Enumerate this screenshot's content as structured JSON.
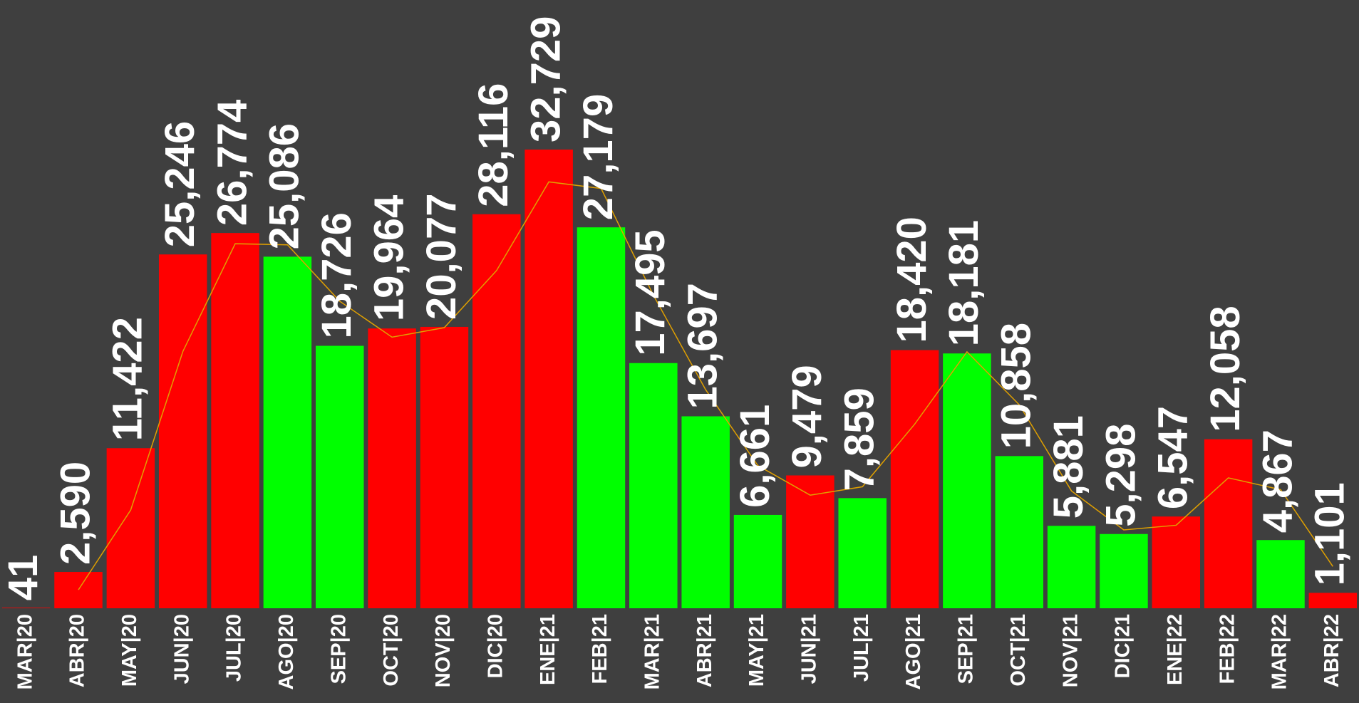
{
  "chart_data": {
    "type": "bar",
    "categories": [
      "MAR|20",
      "ABR|20",
      "MAY|20",
      "JUN|20",
      "JUL|20",
      "AGO|20",
      "SEP|20",
      "OCT|20",
      "NOV|20",
      "DIC|20",
      "ENE|21",
      "FEB|21",
      "MAR|21",
      "ABR|21",
      "MAY|21",
      "JUN|21",
      "JUL|21",
      "AGO|21",
      "SEP|21",
      "OCT|21",
      "NOV|21",
      "DIC|21",
      "ENE|22",
      "FEB|22",
      "MAR|22",
      "ABR|22"
    ],
    "ylim": [
      0,
      43400
    ],
    "series": [
      {
        "type": "bar",
        "values": [
          41,
          2590,
          11422,
          25246,
          26774,
          25086,
          18726,
          19964,
          20077,
          28116,
          32729,
          27179,
          17495,
          13697,
          6661,
          9479,
          7859,
          18420,
          18181,
          10858,
          5881,
          5298,
          6547,
          12058,
          4867,
          1101
        ],
        "value_labels": [
          "41",
          "2,590",
          "11,422",
          "25,246",
          "26,774",
          "25,086",
          "18,726",
          "19,964",
          "20,077",
          "28,116",
          "32,729",
          "27,179",
          "17,495",
          "13,697",
          "6,661",
          "9,479",
          "7,859",
          "18,420",
          "18,181",
          "10,858",
          "5,881",
          "5,298",
          "6,547",
          "12,058",
          "4,867",
          "1,101"
        ],
        "colors": [
          "#ff0000",
          "#ff0000",
          "#ff0000",
          "#ff0000",
          "#ff0000",
          "#00ff00",
          "#00ff00",
          "#ff0000",
          "#ff0000",
          "#ff0000",
          "#ff0000",
          "#00ff00",
          "#00ff00",
          "#00ff00",
          "#00ff00",
          "#ff0000",
          "#00ff00",
          "#ff0000",
          "#00ff00",
          "#00ff00",
          "#00ff00",
          "#00ff00",
          "#ff0000",
          "#ff0000",
          "#00ff00",
          "#ff0000"
        ]
      },
      {
        "type": "line",
        "color": "#e0a000",
        "values": [
          null,
          1316,
          7006,
          18334,
          26010,
          25930,
          21906,
          19345,
          20021,
          24097,
          30423,
          29954,
          22337,
          15596,
          10179,
          8070,
          8669,
          13140,
          18301,
          14520,
          8370,
          5590,
          5923,
          9303,
          8463,
          2984
        ]
      }
    ]
  }
}
